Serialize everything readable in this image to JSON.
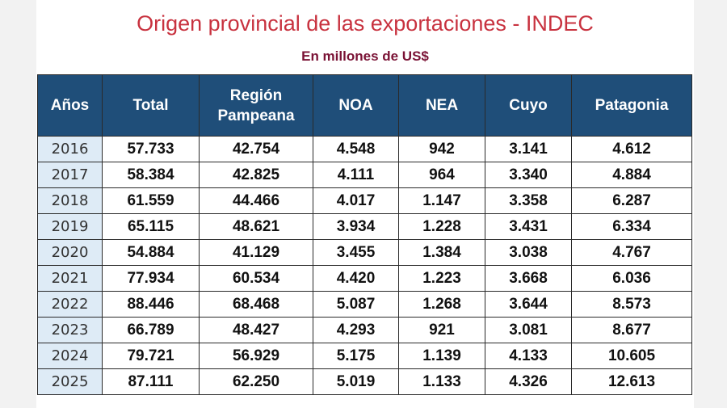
{
  "title": "Origen provincial de las exportaciones - INDEC",
  "subtitle": "En millones de US$",
  "colors": {
    "title": "#c8323f",
    "subtitle": "#7a1235",
    "header_bg": "#1f4e79",
    "year_bg": "#deebf6"
  },
  "table": {
    "headers": [
      "Años",
      "Total",
      "Región Pampeana",
      "NOA",
      "NEA",
      "Cuyo",
      "Patagonia"
    ],
    "rows": [
      [
        "2016",
        "57.733",
        "42.754",
        "4.548",
        "942",
        "3.141",
        "4.612"
      ],
      [
        "2017",
        "58.384",
        "42.825",
        "4.111",
        "964",
        "3.340",
        "4.884"
      ],
      [
        "2018",
        "61.559",
        "44.466",
        "4.017",
        "1.147",
        "3.358",
        "6.287"
      ],
      [
        "2019",
        "65.115",
        "48.621",
        "3.934",
        "1.228",
        "3.431",
        "6.334"
      ],
      [
        "2020",
        "54.884",
        "41.129",
        "3.455",
        "1.384",
        "3.038",
        "4.767"
      ],
      [
        "2021",
        "77.934",
        "60.534",
        "4.420",
        "1.223",
        "3.668",
        "6.036"
      ],
      [
        "2022",
        "88.446",
        "68.468",
        "5.087",
        "1.268",
        "3.644",
        "8.573"
      ],
      [
        "2023",
        "66.789",
        "48.427",
        "4.293",
        "921",
        "3.081",
        "8.677"
      ],
      [
        "2024",
        "79.721",
        "56.929",
        "5.175",
        "1.139",
        "4.133",
        "10.605"
      ],
      [
        "2025",
        "87.111",
        "62.250",
        "5.019",
        "1.133",
        "4.326",
        "12.613"
      ]
    ]
  }
}
